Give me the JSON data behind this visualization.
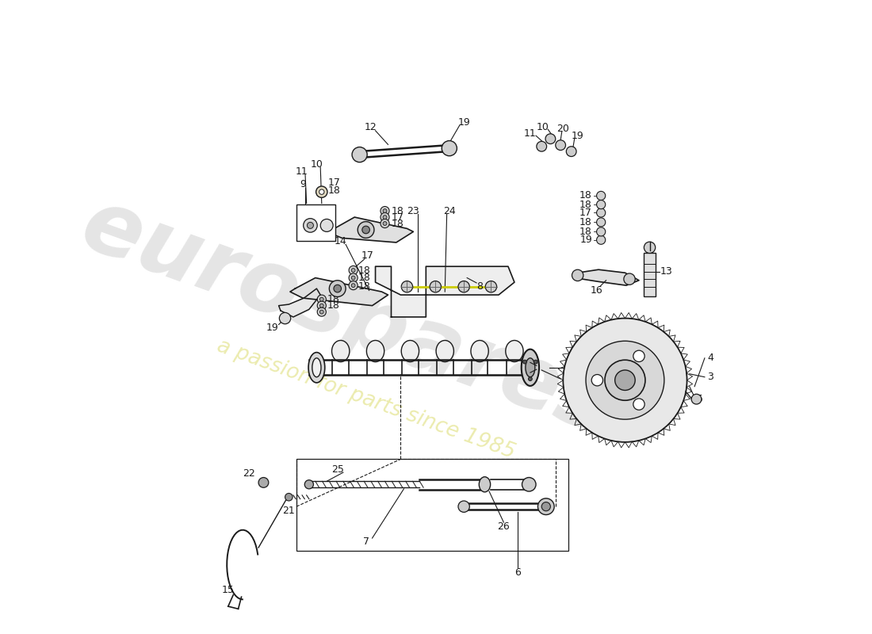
{
  "bg_color": "#ffffff",
  "line_color": "#1a1a1a",
  "watermark_text1": "eurospares",
  "watermark_text2": "a passion for parts since 1985",
  "watermark_color1": "#cccccc",
  "watermark_color2": "#e8e8a0",
  "label_fontsize": 9
}
